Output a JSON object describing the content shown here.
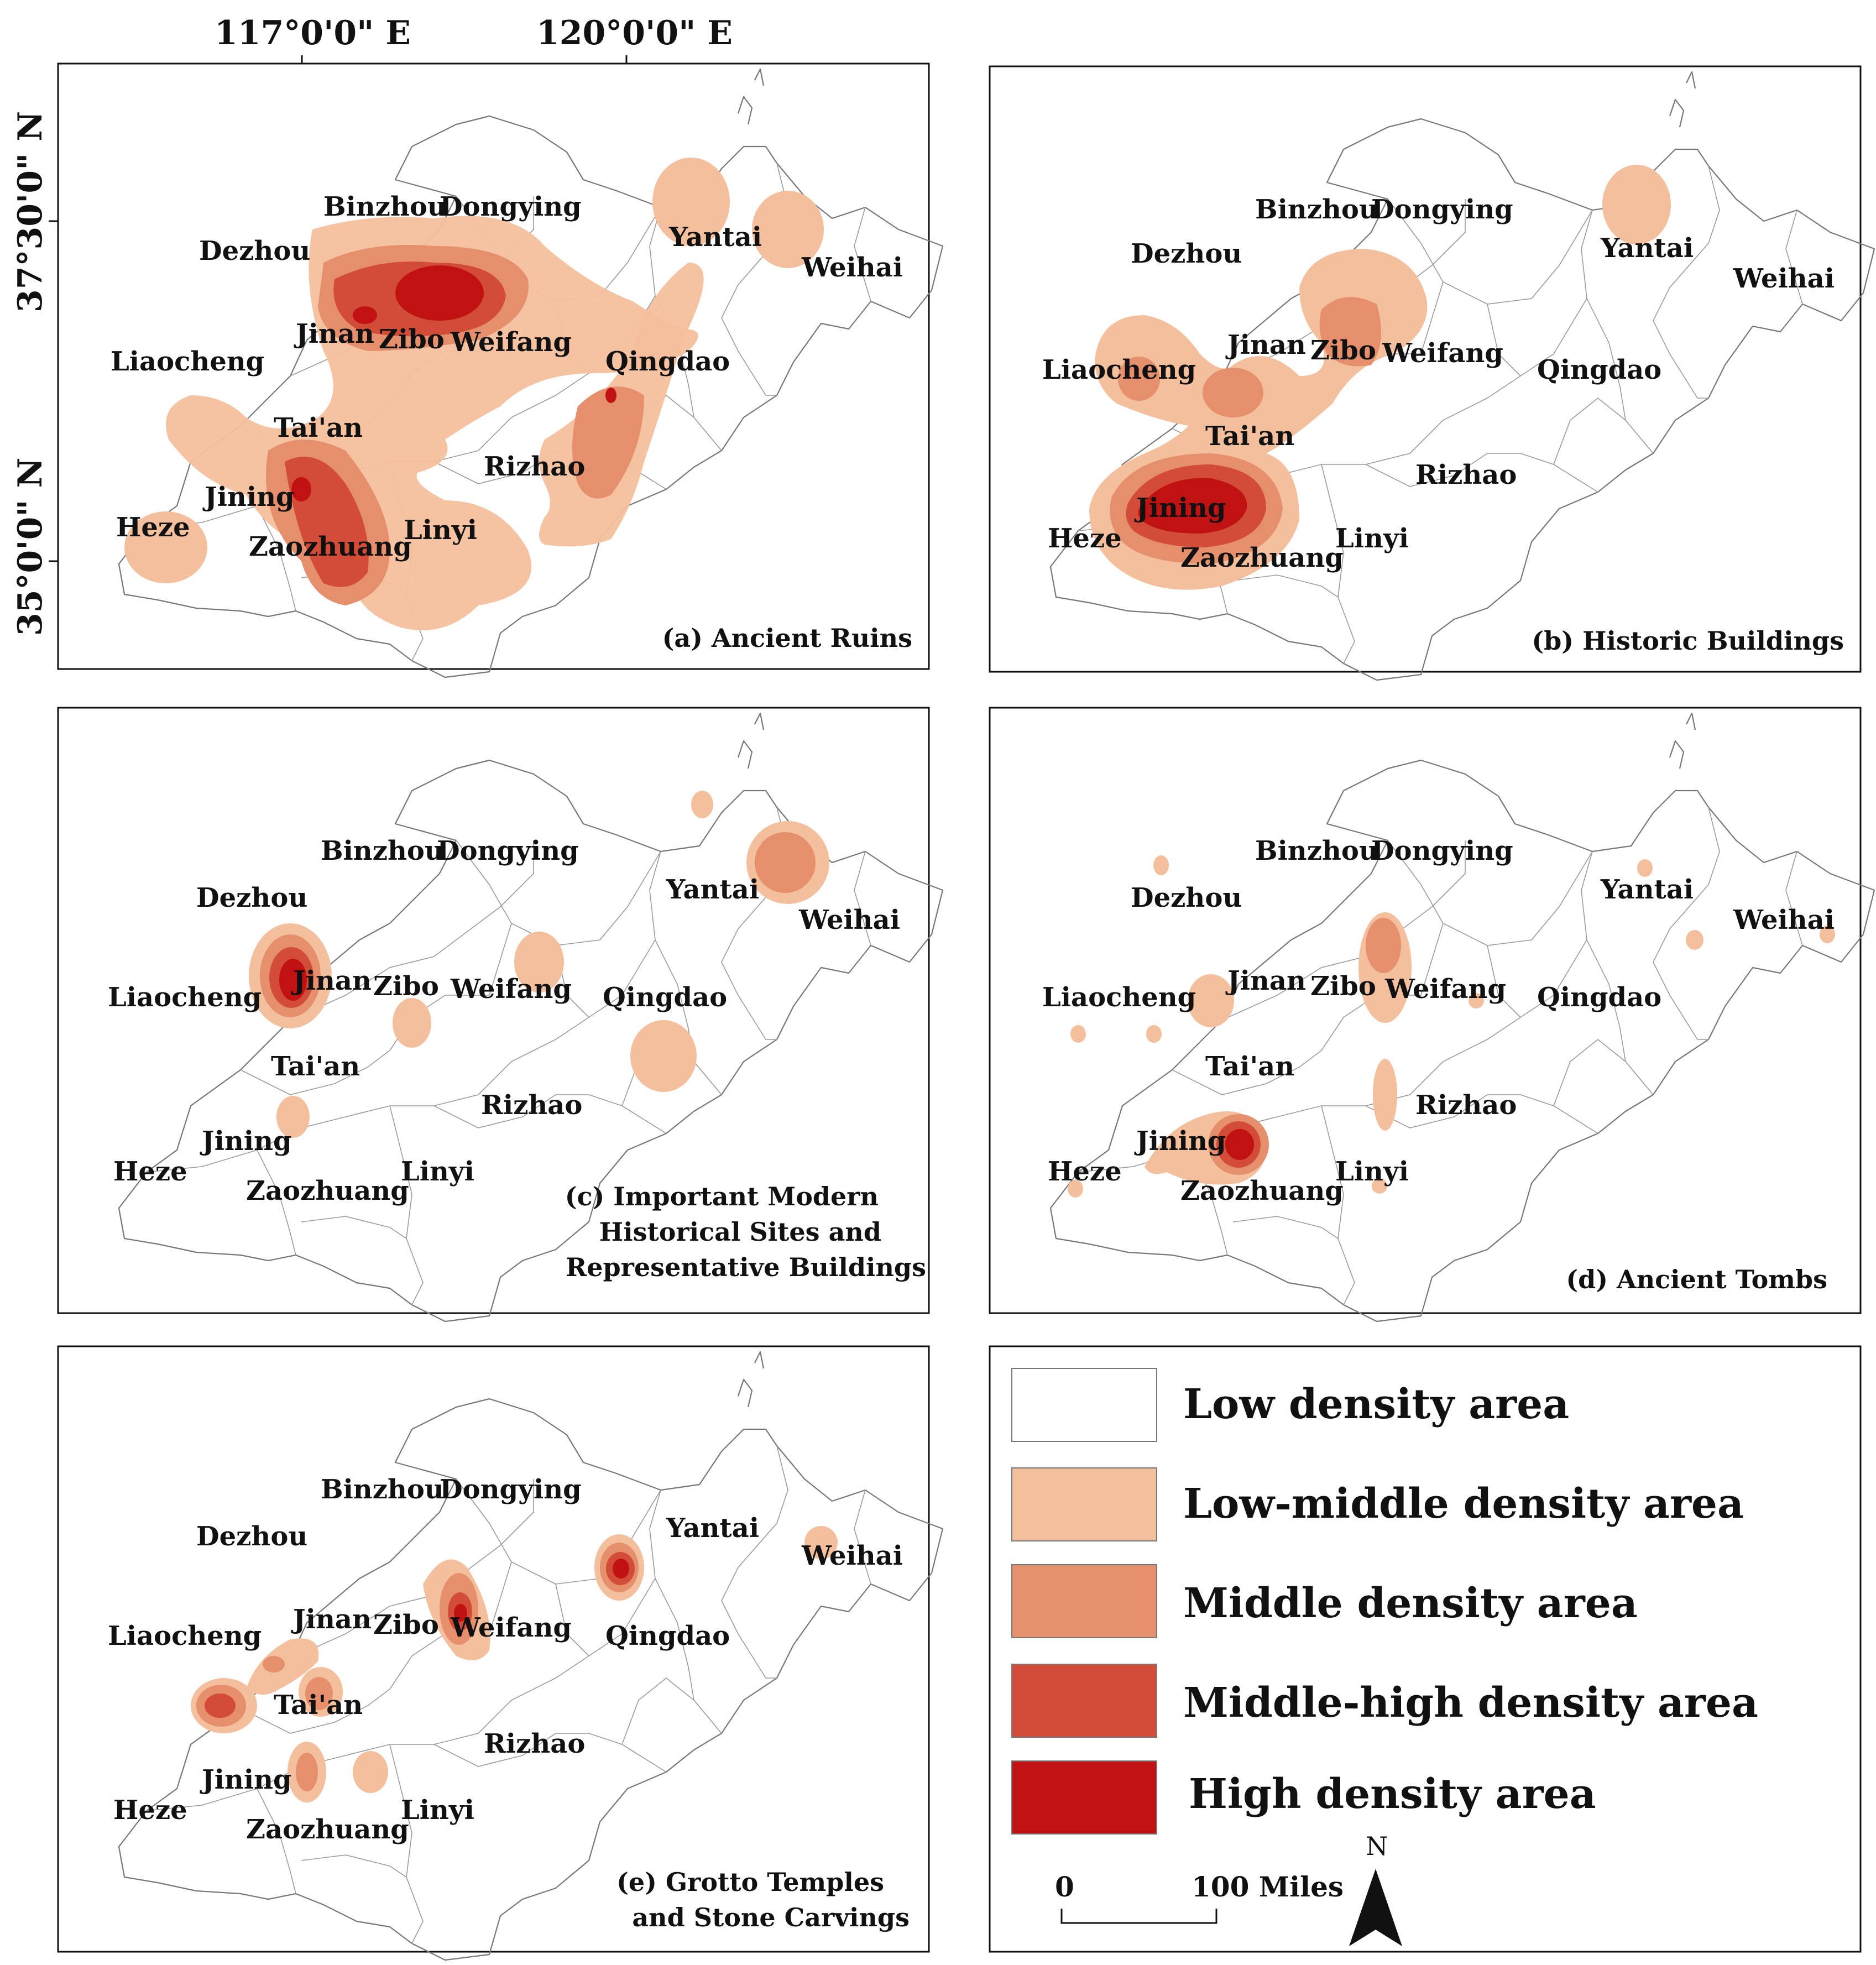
{
  "axes": {
    "lon_labels": [
      "117°0'0\" E",
      "120°0'0\" E"
    ],
    "lat_labels": [
      "37°30'0\" N",
      "35°0'0\" N"
    ]
  },
  "panels": [
    {
      "id": "a",
      "title": [
        "(a) Ancient Ruins"
      ]
    },
    {
      "id": "b",
      "title": [
        "(b) Historic Buildings"
      ]
    },
    {
      "id": "c",
      "title": [
        "(c) Important Modern",
        "Historical Sites and",
        "Representative Buildings"
      ]
    },
    {
      "id": "d",
      "title": [
        "(d) Ancient Tombs"
      ]
    },
    {
      "id": "e",
      "title": [
        "(e) Grotto Temples",
        "and Stone Carvings"
      ]
    }
  ],
  "cities": {
    "binzhou": "Binzhou",
    "dongying": "Dongying",
    "dezhou": "Dezhou",
    "yantai": "Yantai",
    "weihai": "Weihai",
    "jinan": "Jinan",
    "zibo": "Zibo",
    "weifang": "Weifang",
    "liaocheng": "Liaocheng",
    "qingdao": "Qingdao",
    "taian": "Tai'an",
    "rizhao": "Rizhao",
    "jining": "Jining",
    "heze": "Heze",
    "zaozhuang": "Zaozhuang",
    "linyi": "Linyi"
  },
  "density_colors": {
    "low": "#ffffff",
    "low_middle": "#f4bf9d",
    "middle": "#e58f6c",
    "middle_high": "#d24c37",
    "high": "#c01212"
  },
  "legend": {
    "items": [
      {
        "label": "Low density area",
        "color": "#ffffff"
      },
      {
        "label": "Low-middle density area",
        "color": "#f4bf9d"
      },
      {
        "label": "Middle density area",
        "color": "#e58f6c"
      },
      {
        "label": "Middle-high density area",
        "color": "#d24c37"
      },
      {
        "label": "High density area",
        "color": "#c01212"
      }
    ],
    "scale": {
      "zero": "0",
      "distance": "100 Miles"
    },
    "north": "N"
  }
}
